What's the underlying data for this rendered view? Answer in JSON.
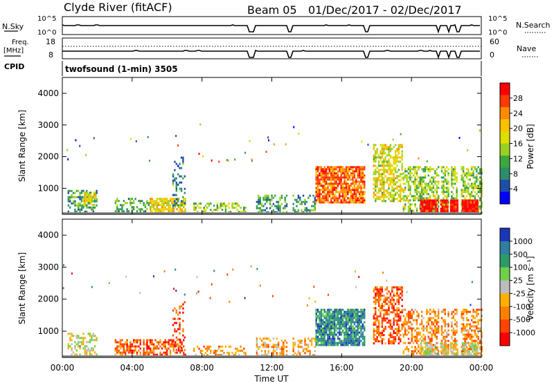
{
  "header": {
    "station": "Clyde River (fitACF)",
    "beam": "Beam 05",
    "dates": "01/Dec/2017 - 02/Dec/2017"
  },
  "strip_nsky": {
    "left_label": "N.Sky",
    "right_label": "N.Search",
    "left_ticks": [
      "10^5",
      "10^0"
    ],
    "right_ticks": [
      "10^5",
      "10^0"
    ]
  },
  "strip_freq": {
    "left_label_1": "Freq.",
    "left_label_2": "[MHz]",
    "right_label": "Nave",
    "left_ticks": [
      "18",
      "8"
    ],
    "right_ticks": [
      "60",
      "0"
    ]
  },
  "cpid": {
    "label": "CPID",
    "text": "twofsound (1-min) 3505"
  },
  "colorbars": {
    "power": {
      "label": "Power [dB]",
      "ticks": [
        "28",
        "24",
        "20",
        "16",
        "12",
        "8",
        "4"
      ],
      "colors": [
        "#ff0000",
        "#ff3a00",
        "#ff8a00",
        "#ffc000",
        "#dede00",
        "#9ad020",
        "#3da83d",
        "#2e8c6a",
        "#1e4fa8",
        "#0000ff"
      ]
    },
    "velocity": {
      "label": "Velocity [m s⁻¹]",
      "ticks": [
        "1000",
        "500",
        "100",
        "25",
        "-25",
        "-100",
        "-500",
        "-1000"
      ],
      "colors": [
        "#1a37b8",
        "#2e7fa0",
        "#2e9a6a",
        "#6fd04a",
        "#bdbdbd",
        "#ffb000",
        "#ff8000",
        "#ff4400",
        "#ff0000"
      ]
    }
  },
  "chart_data": [
    {
      "type": "heatmap",
      "name": "Power",
      "ylabel": "Slant Range [km]",
      "yticks": [
        1000,
        2000,
        3000,
        4000
      ],
      "ylim": [
        180,
        4500
      ],
      "xlim": [
        0,
        24
      ],
      "regions": [
        {
          "t0": 0.3,
          "t1": 2.0,
          "r0": 250,
          "r1": 950,
          "level": 0.3,
          "density": 0.5
        },
        {
          "t0": 1.2,
          "t1": 1.9,
          "r0": 500,
          "r1": 900,
          "level": 0.55,
          "density": 0.7
        },
        {
          "t0": 3.0,
          "t1": 5.0,
          "r0": 250,
          "r1": 700,
          "level": 0.35,
          "density": 0.45
        },
        {
          "t0": 5.0,
          "t1": 7.0,
          "r0": 250,
          "r1": 700,
          "level": 0.6,
          "density": 0.75
        },
        {
          "t0": 6.3,
          "t1": 7.0,
          "r0": 400,
          "r1": 2000,
          "level": 0.25,
          "density": 0.25
        },
        {
          "t0": 7.5,
          "t1": 10.5,
          "r0": 250,
          "r1": 550,
          "level": 0.45,
          "density": 0.4
        },
        {
          "t0": 11.0,
          "t1": 14.5,
          "r0": 250,
          "r1": 800,
          "level": 0.3,
          "density": 0.45
        },
        {
          "t0": 14.5,
          "t1": 17.5,
          "r0": 550,
          "r1": 1700,
          "level": 0.8,
          "density": 0.85
        },
        {
          "t0": 17.8,
          "t1": 19.5,
          "r0": 600,
          "r1": 2400,
          "level": 0.55,
          "density": 0.6
        },
        {
          "t0": 19.5,
          "t1": 24.0,
          "r0": 250,
          "r1": 1700,
          "level": 0.45,
          "density": 0.6
        },
        {
          "t0": 20.5,
          "t1": 23.8,
          "r0": 250,
          "r1": 650,
          "level": 0.95,
          "density": 0.95
        }
      ],
      "gaps": [
        [
          10.7,
          11.0
        ],
        [
          12.9,
          13.1
        ],
        [
          17.3,
          17.5
        ],
        [
          21.5,
          21.6
        ],
        [
          22.1,
          22.2
        ],
        [
          22.6,
          22.8
        ]
      ]
    },
    {
      "type": "heatmap",
      "name": "Velocity",
      "ylabel": "Slant Range [km]",
      "xlabel": "Time UT",
      "xticks": [
        "00:00",
        "04:00",
        "08:00",
        "12:00",
        "16:00",
        "20:00",
        "00:00"
      ],
      "yticks": [
        1000,
        2000,
        3000,
        4000
      ],
      "ylim": [
        180,
        4500
      ],
      "xlim": [
        0,
        24
      ],
      "regions": [
        {
          "t0": 0.3,
          "t1": 2.0,
          "r0": 250,
          "r1": 950,
          "level": 0.5,
          "density": 0.45
        },
        {
          "t0": 3.0,
          "t1": 7.0,
          "r0": 250,
          "r1": 750,
          "level": 0.2,
          "density": 0.55
        },
        {
          "t0": 6.3,
          "t1": 7.0,
          "r0": 400,
          "r1": 2000,
          "level": 0.15,
          "density": 0.25
        },
        {
          "t0": 7.5,
          "t1": 10.5,
          "r0": 250,
          "r1": 550,
          "level": 0.3,
          "density": 0.4
        },
        {
          "t0": 11.0,
          "t1": 14.5,
          "r0": 250,
          "r1": 800,
          "level": 0.35,
          "density": 0.45
        },
        {
          "t0": 14.5,
          "t1": 17.5,
          "r0": 550,
          "r1": 1700,
          "level": 0.78,
          "density": 0.85
        },
        {
          "t0": 17.8,
          "t1": 19.5,
          "r0": 600,
          "r1": 2400,
          "level": 0.2,
          "density": 0.55
        },
        {
          "t0": 19.5,
          "t1": 24.0,
          "r0": 250,
          "r1": 1700,
          "level": 0.3,
          "density": 0.5
        },
        {
          "t0": 20.5,
          "t1": 23.8,
          "r0": 250,
          "r1": 650,
          "level": 0.5,
          "density": 0.7
        }
      ],
      "gaps": [
        [
          10.7,
          11.0
        ],
        [
          12.9,
          13.1
        ],
        [
          17.3,
          17.5
        ],
        [
          21.5,
          21.6
        ],
        [
          22.1,
          22.2
        ],
        [
          22.6,
          22.8
        ]
      ]
    }
  ]
}
